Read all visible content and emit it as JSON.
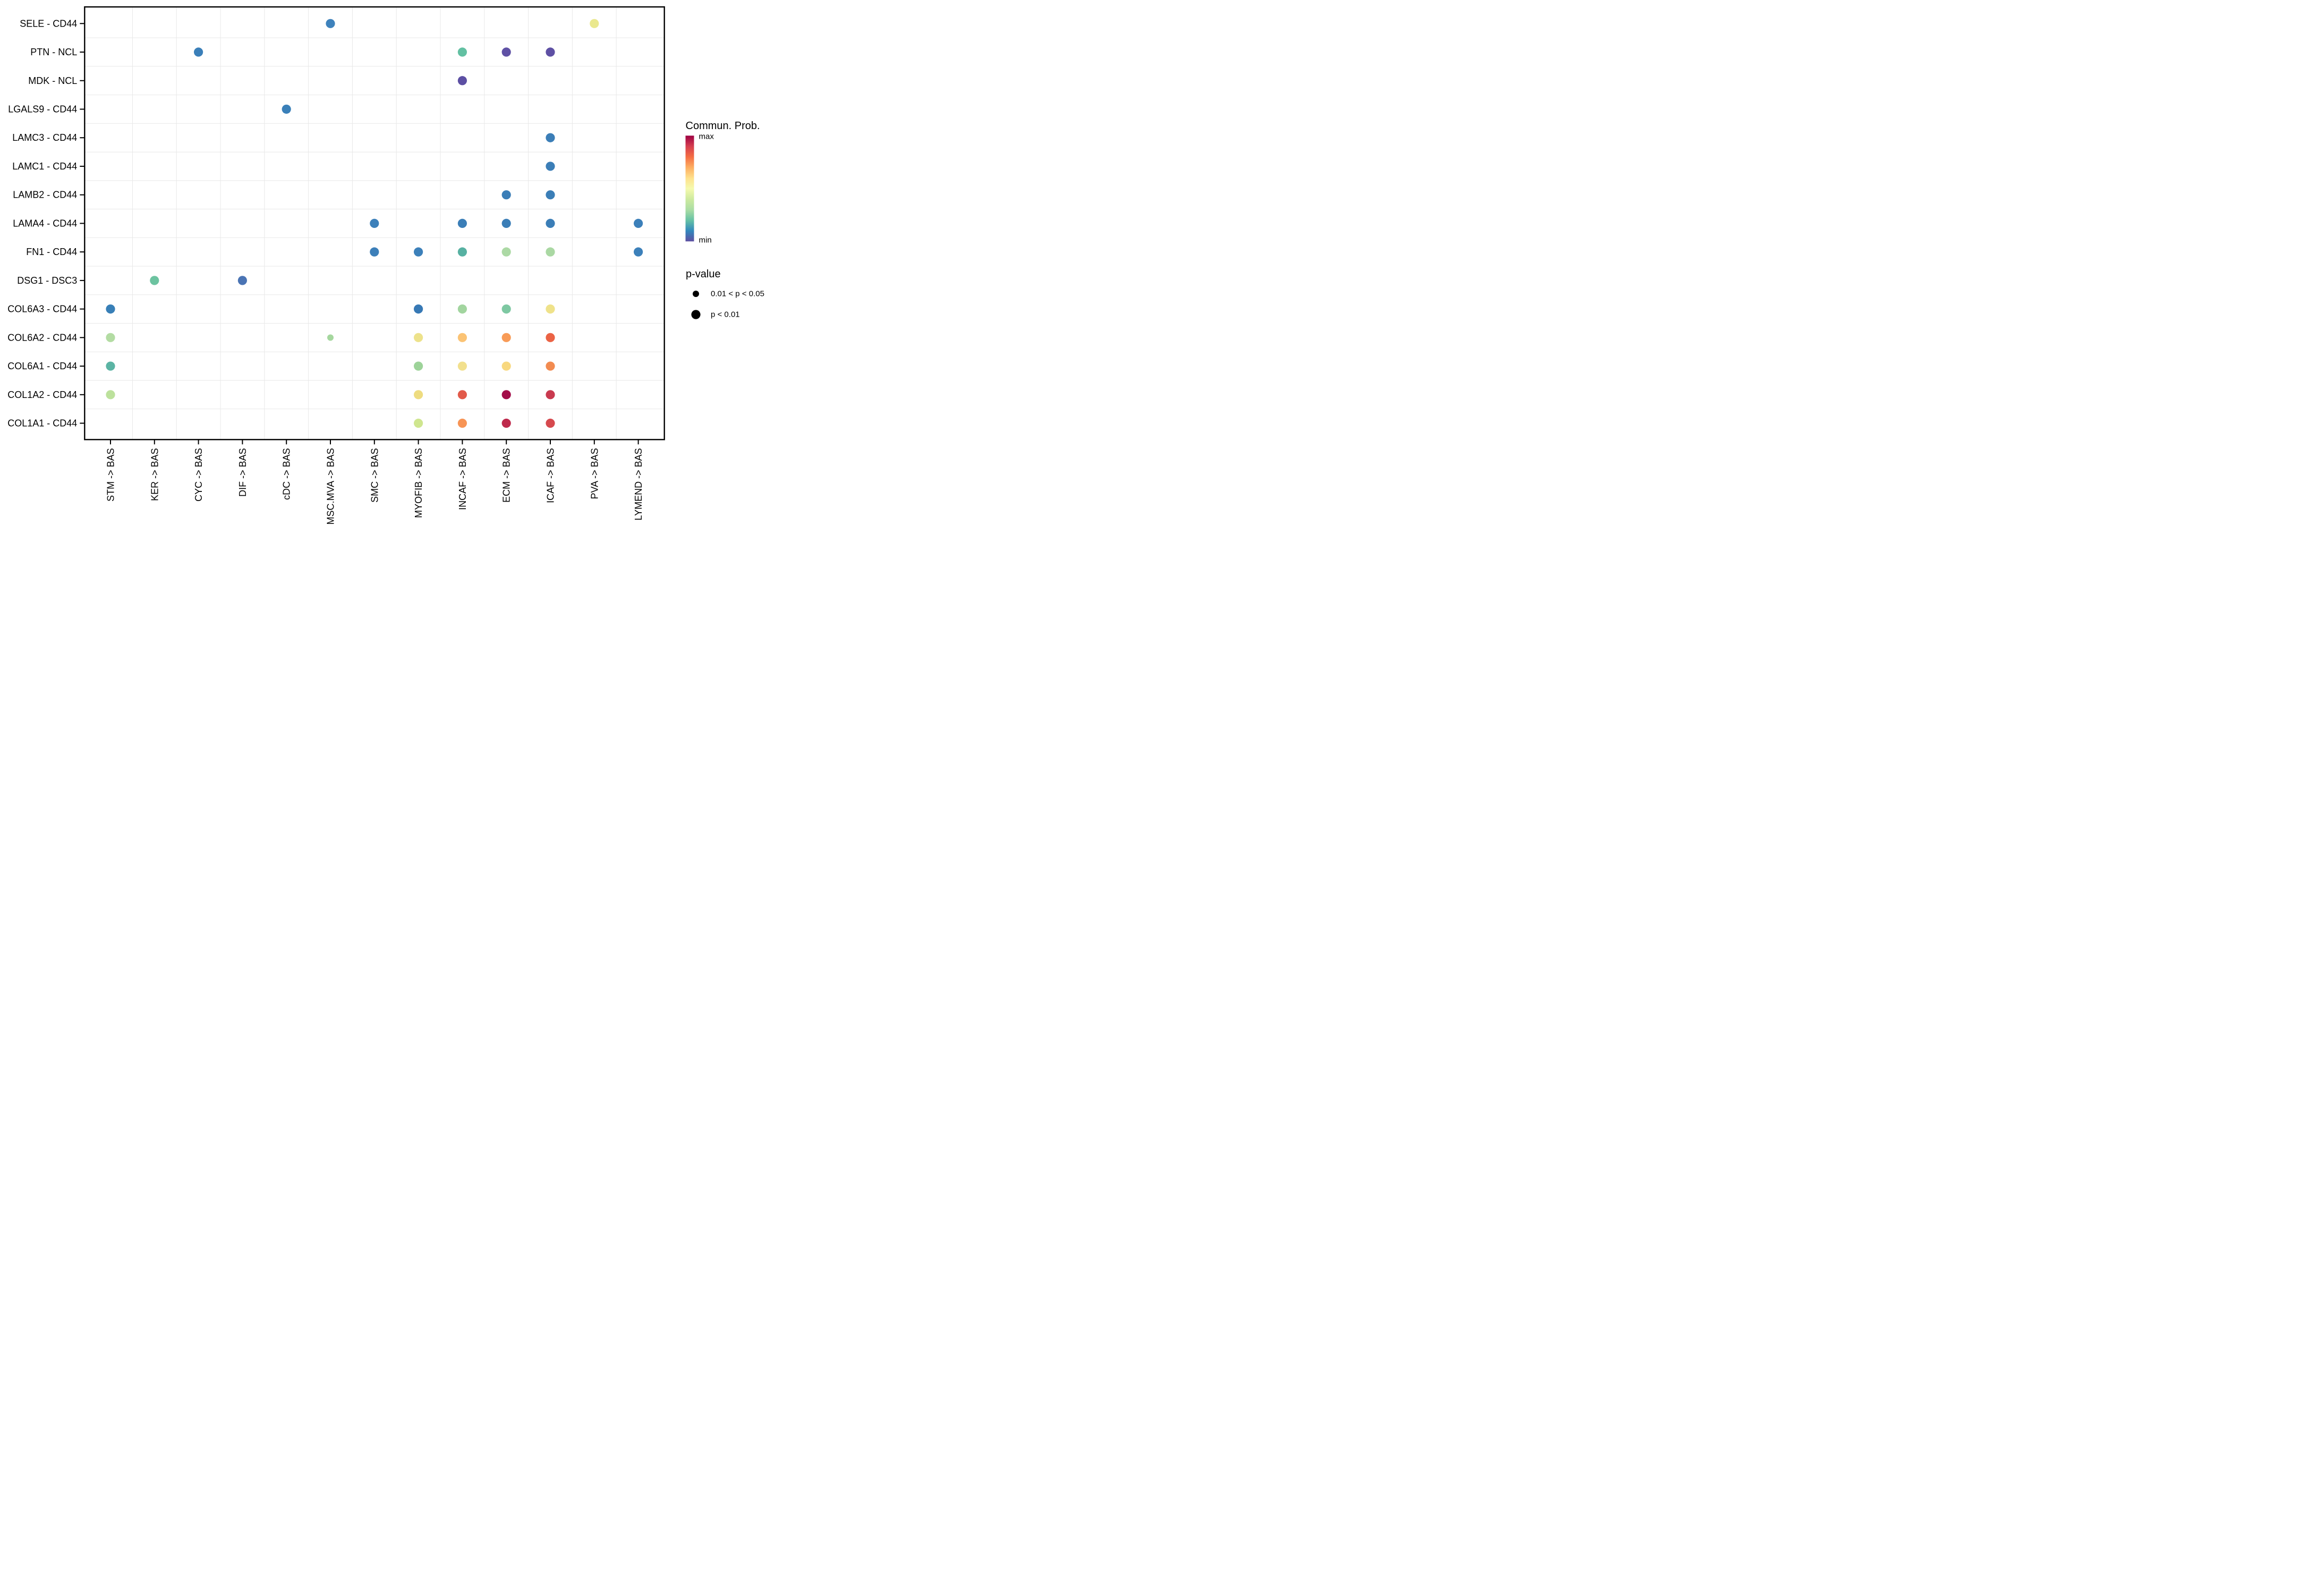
{
  "chart_data": {
    "type": "scatter",
    "subtype": "dot-plot-bubble",
    "title": "",
    "xlabel": "",
    "ylabel": "",
    "grid": "on",
    "x_categories": [
      "STM -> BAS",
      "KER -> BAS",
      "CYC -> BAS",
      "DIF -> BAS",
      "cDC -> BAS",
      "MSC.MVA -> BAS",
      "SMC -> BAS",
      "MYOFIB -> BAS",
      "INCAF -> BAS",
      "ECM -> BAS",
      "ICAF -> BAS",
      "PVA -> BAS",
      "LYMEND -> BAS"
    ],
    "y_categories": [
      "SELE - CD44",
      "PTN - NCL",
      "MDK - NCL",
      "LGALS9 - CD44",
      "LAMC3 - CD44",
      "LAMC1 - CD44",
      "LAMB2 - CD44",
      "LAMA4 - CD44",
      "FN1 - CD44",
      "DSG1 - DSC3",
      "COL6A3 - CD44",
      "COL6A2 - CD44",
      "COL6A1 - CD44",
      "COL1A2 - CD44",
      "COL1A1 - CD44"
    ],
    "legend": {
      "position": "right",
      "color_title": "Commun. Prob.",
      "color_max_label": "max",
      "color_min_label": "min",
      "size_title": "p-value",
      "size_items": [
        {
          "label": "0.01 < p < 0.05",
          "size": "small"
        },
        {
          "label": "p < 0.01",
          "size": "large"
        }
      ]
    },
    "colormap": {
      "name": "spectral-reversed",
      "stops_top_to_bottom": [
        "#9E0142",
        "#D53E4F",
        "#F46D43",
        "#FDAE61",
        "#FEE08B",
        "#F5FAAE",
        "#CDEA9F",
        "#ABDDA4",
        "#66C2A5",
        "#3288BD",
        "#5E4FA2"
      ]
    },
    "points": [
      {
        "x": "MSC.MVA -> BAS",
        "y": "SELE - CD44",
        "color": "#3E82BC",
        "p": "p < 0.01"
      },
      {
        "x": "PVA -> BAS",
        "y": "SELE - CD44",
        "color": "#EAE88E",
        "p": "p < 0.01"
      },
      {
        "x": "CYC -> BAS",
        "y": "PTN - NCL",
        "color": "#3A7FB9",
        "p": "p < 0.01"
      },
      {
        "x": "INCAF -> BAS",
        "y": "PTN - NCL",
        "color": "#62C0A2",
        "p": "p < 0.01"
      },
      {
        "x": "ECM -> BAS",
        "y": "PTN - NCL",
        "color": "#5F51A5",
        "p": "p < 0.01"
      },
      {
        "x": "ICAF -> BAS",
        "y": "PTN - NCL",
        "color": "#5E50A4",
        "p": "p < 0.01"
      },
      {
        "x": "INCAF -> BAS",
        "y": "MDK - NCL",
        "color": "#5C4FA3",
        "p": "p < 0.01"
      },
      {
        "x": "cDC -> BAS",
        "y": "LGALS9 - CD44",
        "color": "#3A80B9",
        "p": "p < 0.01"
      },
      {
        "x": "ICAF -> BAS",
        "y": "LAMC3 - CD44",
        "color": "#3B7EB7",
        "p": "p < 0.01"
      },
      {
        "x": "ICAF -> BAS",
        "y": "LAMC1 - CD44",
        "color": "#3B7EB7",
        "p": "p < 0.01"
      },
      {
        "x": "ECM -> BAS",
        "y": "LAMB2 - CD44",
        "color": "#3B7EB7",
        "p": "p < 0.01"
      },
      {
        "x": "ICAF -> BAS",
        "y": "LAMB2 - CD44",
        "color": "#3B7EB7",
        "p": "p < 0.01"
      },
      {
        "x": "SMC -> BAS",
        "y": "LAMA4 - CD44",
        "color": "#3C80BA",
        "p": "p < 0.01"
      },
      {
        "x": "INCAF -> BAS",
        "y": "LAMA4 - CD44",
        "color": "#3B7EB7",
        "p": "p < 0.01"
      },
      {
        "x": "ECM -> BAS",
        "y": "LAMA4 - CD44",
        "color": "#3B7EB7",
        "p": "p < 0.01"
      },
      {
        "x": "ICAF -> BAS",
        "y": "LAMA4 - CD44",
        "color": "#3B7EB7",
        "p": "p < 0.01"
      },
      {
        "x": "LYMEND -> BAS",
        "y": "LAMA4 - CD44",
        "color": "#3C80BA",
        "p": "p < 0.01"
      },
      {
        "x": "SMC -> BAS",
        "y": "FN1 - CD44",
        "color": "#3C7FB9",
        "p": "p < 0.01"
      },
      {
        "x": "MYOFIB -> BAS",
        "y": "FN1 - CD44",
        "color": "#3C80BA",
        "p": "p < 0.01"
      },
      {
        "x": "INCAF -> BAS",
        "y": "FN1 - CD44",
        "color": "#57B1A2",
        "p": "p < 0.01"
      },
      {
        "x": "ECM -> BAS",
        "y": "FN1 - CD44",
        "color": "#ACD9A5",
        "p": "p < 0.01"
      },
      {
        "x": "ICAF -> BAS",
        "y": "FN1 - CD44",
        "color": "#AAD8A3",
        "p": "p < 0.01"
      },
      {
        "x": "LYMEND -> BAS",
        "y": "FN1 - CD44",
        "color": "#3C80BA",
        "p": "p < 0.01"
      },
      {
        "x": "KER -> BAS",
        "y": "DSG1 - DSC3",
        "color": "#6CC3A0",
        "p": "p < 0.01"
      },
      {
        "x": "DIF -> BAS",
        "y": "DSG1 - DSC3",
        "color": "#4A74B4",
        "p": "p < 0.01"
      },
      {
        "x": "STM -> BAS",
        "y": "COL6A3 - CD44",
        "color": "#387FB7",
        "p": "p < 0.01"
      },
      {
        "x": "MYOFIB -> BAS",
        "y": "COL6A3 - CD44",
        "color": "#3779B5",
        "p": "p < 0.01"
      },
      {
        "x": "INCAF -> BAS",
        "y": "COL6A3 - CD44",
        "color": "#A2D59F",
        "p": "p < 0.01"
      },
      {
        "x": "ECM -> BAS",
        "y": "COL6A3 - CD44",
        "color": "#7EC8A2",
        "p": "p < 0.01"
      },
      {
        "x": "ICAF -> BAS",
        "y": "COL6A3 - CD44",
        "color": "#EFE28A",
        "p": "p < 0.01"
      },
      {
        "x": "STM -> BAS",
        "y": "COL6A2 - CD44",
        "color": "#B3DCA3",
        "p": "p < 0.01"
      },
      {
        "x": "MSC.MVA -> BAS",
        "y": "COL6A2 - CD44",
        "color": "#A5D79E",
        "p": "0.01 < p < 0.05"
      },
      {
        "x": "MYOFIB -> BAS",
        "y": "COL6A2 - CD44",
        "color": "#EDE28B",
        "p": "p < 0.01"
      },
      {
        "x": "INCAF -> BAS",
        "y": "COL6A2 - CD44",
        "color": "#FBC374",
        "p": "p < 0.01"
      },
      {
        "x": "ECM -> BAS",
        "y": "COL6A2 - CD44",
        "color": "#F89B57",
        "p": "p < 0.01"
      },
      {
        "x": "ICAF -> BAS",
        "y": "COL6A2 - CD44",
        "color": "#EB6345",
        "p": "p < 0.01"
      },
      {
        "x": "STM -> BAS",
        "y": "COL6A1 - CD44",
        "color": "#5BB4A4",
        "p": "p < 0.01"
      },
      {
        "x": "MYOFIB -> BAS",
        "y": "COL6A1 - CD44",
        "color": "#9DD399",
        "p": "p < 0.01"
      },
      {
        "x": "INCAF -> BAS",
        "y": "COL6A1 - CD44",
        "color": "#F2E08D",
        "p": "p < 0.01"
      },
      {
        "x": "ECM -> BAS",
        "y": "COL6A1 - CD44",
        "color": "#F8D87F",
        "p": "p < 0.01"
      },
      {
        "x": "ICAF -> BAS",
        "y": "COL6A1 - CD44",
        "color": "#F28B50",
        "p": "p < 0.01"
      },
      {
        "x": "STM -> BAS",
        "y": "COL1A2 - CD44",
        "color": "#BCE19C",
        "p": "p < 0.01"
      },
      {
        "x": "MYOFIB -> BAS",
        "y": "COL1A2 - CD44",
        "color": "#EEDC80",
        "p": "p < 0.01"
      },
      {
        "x": "INCAF -> BAS",
        "y": "COL1A2 - CD44",
        "color": "#E25A4A",
        "p": "p < 0.01"
      },
      {
        "x": "ECM -> BAS",
        "y": "COL1A2 - CD44",
        "color": "#A30D49",
        "p": "p < 0.01"
      },
      {
        "x": "ICAF -> BAS",
        "y": "COL1A2 - CD44",
        "color": "#C93A4F",
        "p": "p < 0.01"
      },
      {
        "x": "MYOFIB -> BAS",
        "y": "COL1A1 - CD44",
        "color": "#CFE68F",
        "p": "p < 0.01"
      },
      {
        "x": "INCAF -> BAS",
        "y": "COL1A1 - CD44",
        "color": "#F79455",
        "p": "p < 0.01"
      },
      {
        "x": "ECM -> BAS",
        "y": "COL1A1 - CD44",
        "color": "#BE2A4C",
        "p": "p < 0.01"
      },
      {
        "x": "ICAF -> BAS",
        "y": "COL1A1 - CD44",
        "color": "#D6494E",
        "p": "p < 0.01"
      }
    ],
    "style_colors": {
      "panel_border": "#000000",
      "grid_line": "#E8E8E8",
      "background": "#FFFFFF",
      "text": "#000000",
      "legend_dot": "#000000"
    }
  }
}
